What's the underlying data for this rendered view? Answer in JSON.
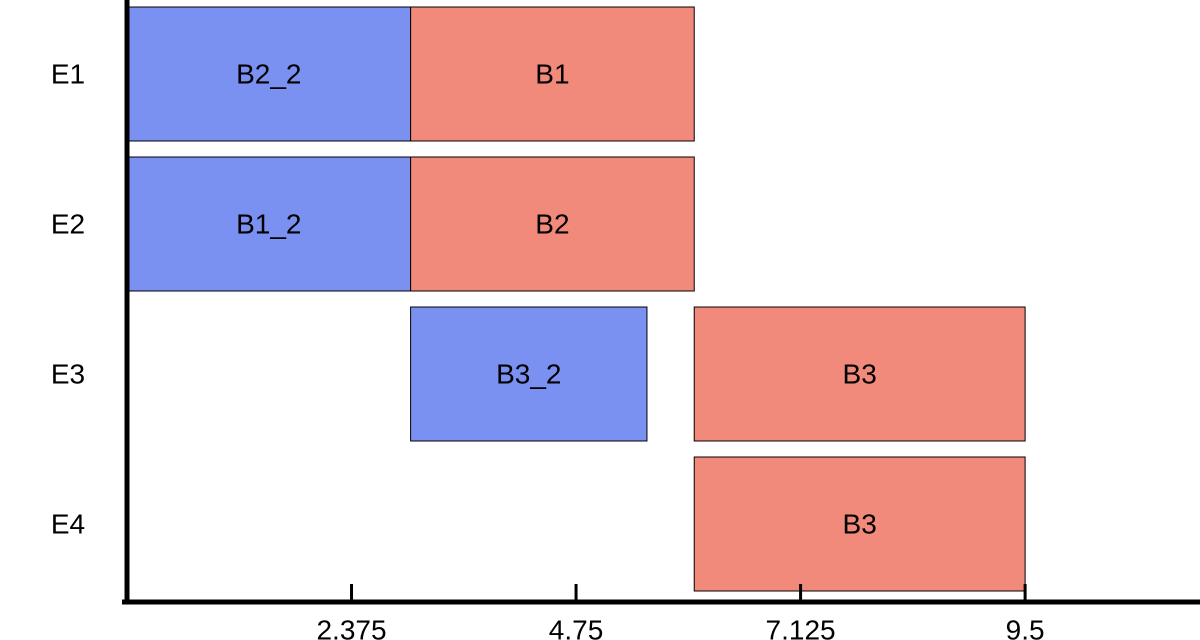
{
  "chart_data": {
    "type": "gantt",
    "title": "",
    "xlabel": "",
    "ylabel": "",
    "xlim": [
      0,
      11.35
    ],
    "xticks": [
      2.375,
      4.75,
      7.125,
      9.5
    ],
    "xtick_labels": [
      "2.375",
      "4.75",
      "7.125",
      "9.5"
    ],
    "rows": [
      "E1",
      "E2",
      "E3",
      "E4"
    ],
    "colors": {
      "blue": "#7b91f1",
      "red": "#f28a7b"
    },
    "bars": [
      {
        "row": "E1",
        "label": "B2_2",
        "start": 0,
        "end": 3.0,
        "color": "blue"
      },
      {
        "row": "E1",
        "label": "B1",
        "start": 3.0,
        "end": 6.0,
        "color": "red"
      },
      {
        "row": "E2",
        "label": "B1_2",
        "start": 0,
        "end": 3.0,
        "color": "blue"
      },
      {
        "row": "E2",
        "label": "B2",
        "start": 3.0,
        "end": 6.0,
        "color": "red"
      },
      {
        "row": "E3",
        "label": "B3_2",
        "start": 3.0,
        "end": 5.5,
        "color": "blue"
      },
      {
        "row": "E3",
        "label": "B3",
        "start": 6.0,
        "end": 9.5,
        "color": "red"
      },
      {
        "row": "E4",
        "label": "B3",
        "start": 6.0,
        "end": 9.5,
        "color": "red"
      }
    ],
    "grid": false,
    "legend": "none"
  }
}
